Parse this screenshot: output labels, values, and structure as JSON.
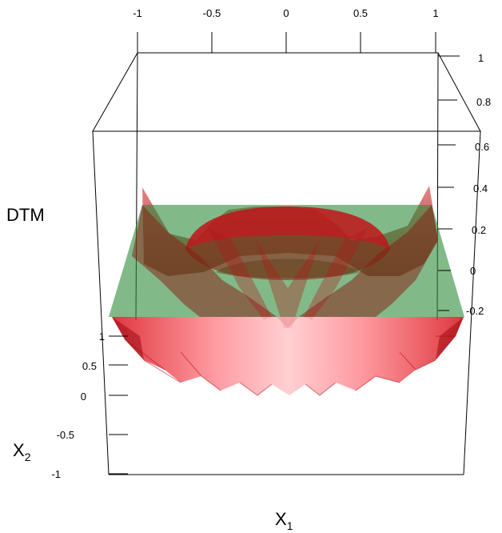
{
  "chart_data": {
    "type": "surface3d",
    "title": "",
    "xlabel": "X",
    "xlabel_subscript": "1",
    "ylabel": "X",
    "ylabel_subscript": "2",
    "zlabel": "DTM",
    "x_ticks": [
      "-1",
      "-0.5",
      "0",
      "0.5",
      "1"
    ],
    "y_ticks": [
      "-1",
      "-0.5",
      "0",
      "0.5",
      "1"
    ],
    "z_ticks": [
      "-0.2",
      "0",
      "0.2",
      "0.4",
      "0.6",
      "0.8",
      "1"
    ],
    "xlim": [
      -1,
      1
    ],
    "ylim": [
      -1,
      1
    ],
    "zlim": [
      -0.2,
      1
    ],
    "series": [
      {
        "kind": "surface",
        "description": "ring-shaped distance-to-measure surface, lowest near the unit circle and rising toward the corners and center",
        "color": "#e0141e",
        "opacity": 0.55
      },
      {
        "kind": "plane",
        "z": 0.25,
        "color": "#2e8b3a",
        "opacity": 0.55
      }
    ]
  }
}
